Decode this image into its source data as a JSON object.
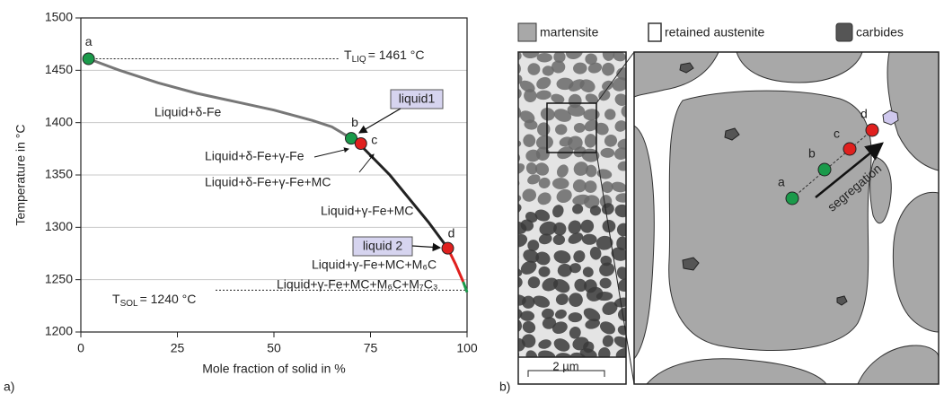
{
  "chart_data": {
    "type": "line",
    "ylabel": "Temperature in °C",
    "xlabel": "Mole fraction of solid in %",
    "x": [
      2,
      10,
      20,
      30,
      40,
      50,
      60,
      65,
      70,
      72,
      80,
      90,
      95,
      97,
      99,
      100
    ],
    "series": [
      {
        "color": "#777777",
        "values": [
          1461,
          1450,
          1438,
          1428,
          1420,
          1412,
          1402,
          1396,
          1385,
          null,
          null,
          null,
          null,
          null,
          null,
          null
        ]
      },
      {
        "color": "#222222",
        "values": [
          null,
          null,
          null,
          null,
          null,
          null,
          null,
          null,
          1385,
          1380,
          1350,
          1305,
          1280,
          null,
          null,
          null
        ]
      },
      {
        "color": "#e0201e",
        "values": [
          null,
          null,
          null,
          null,
          null,
          null,
          null,
          null,
          null,
          null,
          null,
          null,
          1280,
          1265,
          1248,
          null
        ]
      },
      {
        "color": "#1a9a4a",
        "values": [
          null,
          null,
          null,
          null,
          null,
          null,
          null,
          null,
          null,
          null,
          null,
          null,
          null,
          null,
          1248,
          1238
        ]
      }
    ],
    "points": [
      {
        "label": "a",
        "x": 2,
        "y": 1461,
        "color": "#1a9a4a"
      },
      {
        "label": "b",
        "x": 70,
        "y": 1385,
        "color": "#1a9a4a"
      },
      {
        "label": "c",
        "x": 72.5,
        "y": 1380,
        "color": "#e0201e"
      },
      {
        "label": "d",
        "x": 95,
        "y": 1280,
        "color": "#e0201e"
      }
    ],
    "xlim": [
      0,
      100
    ],
    "ylim": [
      1200,
      1500
    ],
    "xticks": [
      0,
      25,
      50,
      75,
      100
    ],
    "yticks": [
      1200,
      1250,
      1300,
      1350,
      1400,
      1450,
      1500
    ],
    "grid": true,
    "liquidus": {
      "value": 1461,
      "symbol": "T",
      "sub": "LIQ",
      "text": "= 1461 °C"
    },
    "solidus": {
      "value": 1240,
      "symbol": "T",
      "sub": "SOL",
      "text": "= 1240 °C"
    },
    "phase_labels": [
      "Liquid+δ-Fe",
      "Liquid+δ-Fe+γ-Fe",
      "Liquid+δ-Fe+γ-Fe+MC",
      "Liquid+γ-Fe+MC",
      "Liquid+γ-Fe+MC+M₆C",
      "Liquid+γ-Fe+MC+M₆C+M₇C₃"
    ],
    "callouts": [
      "liquid1",
      "liquid 2"
    ]
  },
  "panel_labels": [
    "a)",
    "b)"
  ],
  "diagram": {
    "legend": [
      "martensite",
      "retained austenite",
      "carbides"
    ],
    "scale_bar": "2 µm",
    "points": [
      "a",
      "b",
      "c",
      "d"
    ],
    "arrow_label": "segregation"
  }
}
